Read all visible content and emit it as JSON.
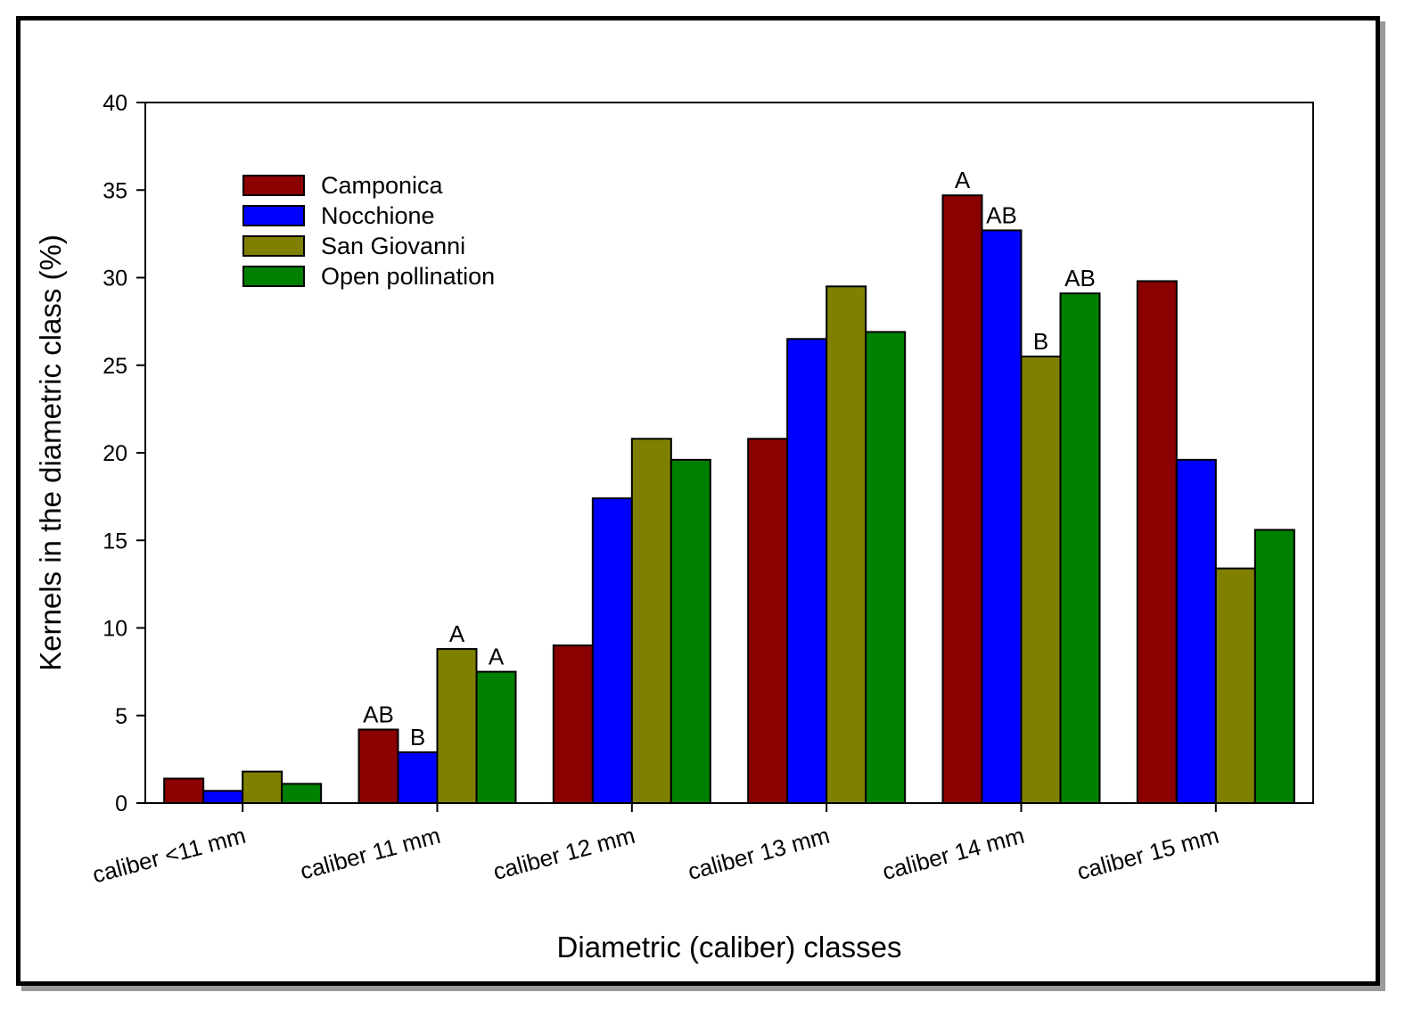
{
  "chart_data": {
    "type": "bar",
    "title": "",
    "xlabel": "Diametric (caliber) classes",
    "ylabel": "Kernels in the diametric class (%)",
    "ylim": [
      0,
      40
    ],
    "yticks": [
      0,
      5,
      10,
      15,
      20,
      25,
      30,
      35,
      40
    ],
    "categories": [
      "caliber <11 mm",
      "caliber 11  mm",
      "caliber 12 mm",
      "caliber 13 mm",
      "caliber 14 mm",
      "caliber 15 mm"
    ],
    "series": [
      {
        "name": "Camponica",
        "color": "#8B0000",
        "values": [
          1.4,
          4.2,
          9.0,
          20.8,
          34.7,
          29.8
        ]
      },
      {
        "name": "Nocchione",
        "color": "#0000FF",
        "values": [
          0.7,
          2.9,
          17.4,
          26.5,
          32.7,
          19.6
        ]
      },
      {
        "name": "San Giovanni",
        "color": "#808000",
        "values": [
          1.8,
          8.8,
          20.8,
          29.5,
          25.5,
          13.4
        ]
      },
      {
        "name": "Open pollination",
        "color": "#008000",
        "values": [
          1.1,
          7.5,
          19.6,
          26.9,
          29.1,
          15.6
        ]
      }
    ],
    "legend": {
      "position": "top-left"
    },
    "annotations": [
      {
        "category": 1,
        "series": 0,
        "text": "AB"
      },
      {
        "category": 1,
        "series": 1,
        "text": "B"
      },
      {
        "category": 1,
        "series": 2,
        "text": "A"
      },
      {
        "category": 1,
        "series": 3,
        "text": "A"
      },
      {
        "category": 4,
        "series": 0,
        "text": "A"
      },
      {
        "category": 4,
        "series": 1,
        "text": "AB"
      },
      {
        "category": 4,
        "series": 2,
        "text": "B"
      },
      {
        "category": 4,
        "series": 3,
        "text": "AB"
      }
    ]
  }
}
